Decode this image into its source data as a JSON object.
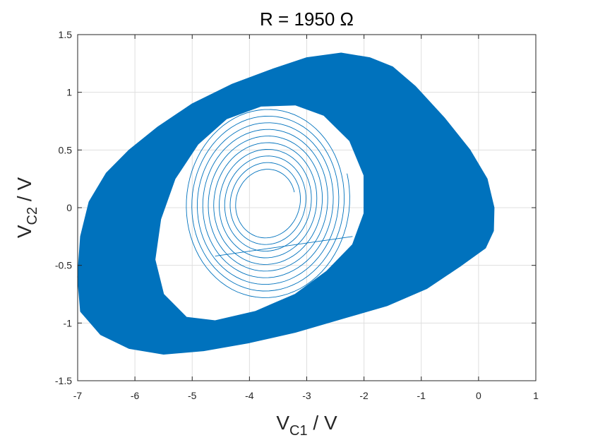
{
  "chart_data": {
    "type": "line",
    "title": "R = 1950 Ω",
    "xlabel": {
      "main": "V",
      "sub": "C1",
      "unit": " / V"
    },
    "ylabel": {
      "main": "V",
      "sub": "C2",
      "unit": " / V"
    },
    "xlim": [
      -7,
      1
    ],
    "ylim": [
      -1.5,
      1.5
    ],
    "xticks": [
      -7,
      -6,
      -5,
      -4,
      -3,
      -2,
      -1,
      0,
      1
    ],
    "xtick_labels": [
      "-7",
      "-6",
      "-5",
      "-4",
      "-3",
      "-2",
      "-1",
      "0",
      "1"
    ],
    "yticks": [
      -1.5,
      -1,
      -0.5,
      0,
      0.5,
      1,
      1.5
    ],
    "ytick_labels": [
      "-1.5",
      "-1",
      "-0.5",
      "0",
      "0.5",
      "1",
      "1.5"
    ],
    "grid": true,
    "series": [
      {
        "color": "#0072BD",
        "description": "phase portrait: spiral-out oscillation inside a dense chaotic attractor band",
        "outer_boundary": [
          [
            -7.0,
            -0.6
          ],
          [
            -6.95,
            -0.25
          ],
          [
            -6.8,
            0.05
          ],
          [
            -6.5,
            0.3
          ],
          [
            -6.1,
            0.5
          ],
          [
            -5.6,
            0.7
          ],
          [
            -5.0,
            0.9
          ],
          [
            -4.3,
            1.07
          ],
          [
            -3.6,
            1.2
          ],
          [
            -3.0,
            1.3
          ],
          [
            -2.4,
            1.34
          ],
          [
            -1.9,
            1.3
          ],
          [
            -1.5,
            1.22
          ],
          [
            -1.1,
            1.05
          ],
          [
            -0.6,
            0.78
          ],
          [
            -0.15,
            0.5
          ],
          [
            0.15,
            0.25
          ],
          [
            0.27,
            0.0
          ],
          [
            0.26,
            -0.2
          ],
          [
            0.12,
            -0.35
          ],
          [
            -0.3,
            -0.5
          ],
          [
            -0.9,
            -0.7
          ],
          [
            -1.6,
            -0.85
          ],
          [
            -2.3,
            -0.95
          ],
          [
            -3.2,
            -1.08
          ],
          [
            -4.0,
            -1.17
          ],
          [
            -4.8,
            -1.24
          ],
          [
            -5.5,
            -1.27
          ],
          [
            -6.1,
            -1.22
          ],
          [
            -6.6,
            -1.1
          ],
          [
            -6.95,
            -0.9
          ]
        ],
        "inner_hole": [
          [
            -5.5,
            -0.75
          ],
          [
            -5.65,
            -0.45
          ],
          [
            -5.55,
            -0.1
          ],
          [
            -5.3,
            0.25
          ],
          [
            -4.9,
            0.55
          ],
          [
            -4.4,
            0.77
          ],
          [
            -3.8,
            0.88
          ],
          [
            -3.2,
            0.89
          ],
          [
            -2.7,
            0.8
          ],
          [
            -2.25,
            0.58
          ],
          [
            -2.0,
            0.28
          ],
          [
            -2.0,
            -0.05
          ],
          [
            -2.2,
            -0.32
          ],
          [
            -2.65,
            -0.55
          ],
          [
            -3.2,
            -0.75
          ],
          [
            -3.9,
            -0.9
          ],
          [
            -4.6,
            -0.98
          ],
          [
            -5.1,
            -0.95
          ]
        ],
        "inner_spiral": {
          "center": [
            -3.7,
            0.05
          ],
          "start_rx": 0.55,
          "start_ry": 0.28,
          "end_rx": 1.6,
          "end_ry": 0.88,
          "turns": 10
        }
      }
    ]
  }
}
